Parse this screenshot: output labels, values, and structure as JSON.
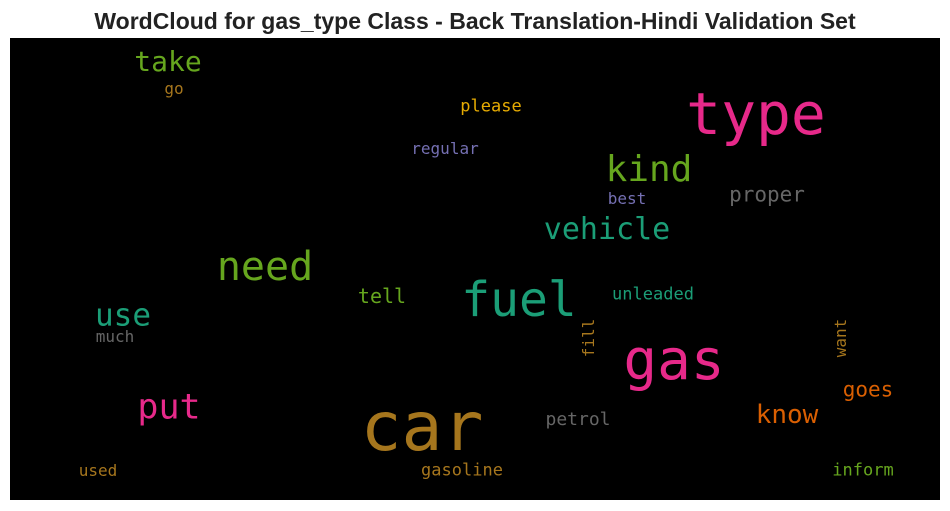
{
  "chart_data": {
    "type": "wordcloud",
    "title": "WordCloud for gas_type Class - Back Translation-Hindi Validation Set",
    "background": "#000000",
    "words": [
      {
        "text": "car",
        "color": "#a6761d"
      },
      {
        "text": "type",
        "color": "#e7298a"
      },
      {
        "text": "gas",
        "color": "#e7298a"
      },
      {
        "text": "fuel",
        "color": "#1b9e77"
      },
      {
        "text": "need",
        "color": "#66a61e"
      },
      {
        "text": "kind",
        "color": "#66a61e"
      },
      {
        "text": "put",
        "color": "#e7298a"
      },
      {
        "text": "vehicle",
        "color": "#1b9e77"
      },
      {
        "text": "use",
        "color": "#1b9e77"
      },
      {
        "text": "take",
        "color": "#66a61e"
      },
      {
        "text": "know",
        "color": "#d95f02"
      },
      {
        "text": "proper",
        "color": "#666666"
      },
      {
        "text": "goes",
        "color": "#d95f02"
      },
      {
        "text": "tell",
        "color": "#66a61e"
      },
      {
        "text": "unleaded",
        "color": "#1b9e77"
      },
      {
        "text": "petrol",
        "color": "#666666"
      },
      {
        "text": "gasoline",
        "color": "#a6761d"
      },
      {
        "text": "inform",
        "color": "#66a61e"
      },
      {
        "text": "please",
        "color": "#e6ab02"
      },
      {
        "text": "regular",
        "color": "#7570b3"
      },
      {
        "text": "best",
        "color": "#7570b3"
      },
      {
        "text": "much",
        "color": "#666666"
      },
      {
        "text": "used",
        "color": "#a6761d"
      },
      {
        "text": "go",
        "color": "#a6761d"
      },
      {
        "text": "fill",
        "color": "#a6761d"
      },
      {
        "text": "want",
        "color": "#a6761d"
      }
    ]
  }
}
